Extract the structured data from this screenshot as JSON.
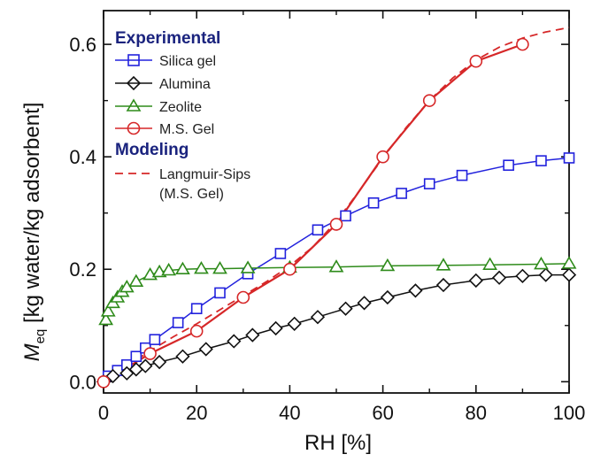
{
  "chart_data": {
    "type": "scatter",
    "xlabel": "RH [%]",
    "ylabel_symbol": "M",
    "ylabel_subscript": "eq",
    "ylabel_rest": " [kg water/kg adsorbent]",
    "xlim": [
      0,
      100
    ],
    "ylim": [
      -0.02,
      0.66
    ],
    "xticks": [
      0,
      20,
      40,
      60,
      80,
      100
    ],
    "xtick_labels": [
      "0",
      "20",
      "40",
      "60",
      "80",
      "100"
    ],
    "yticks": [
      0.0,
      0.2,
      0.4,
      0.6
    ],
    "ytick_labels": [
      "0.0",
      "0.2",
      "0.4",
      "0.6"
    ],
    "grid": false,
    "legend_placement": "top-left",
    "legend_header_experimental": "Experimental",
    "legend_header_modeling": "Modeling",
    "series": [
      {
        "name": "Silica gel",
        "marker": "square",
        "color": "#2222dd",
        "x": [
          1,
          3,
          5,
          7,
          9,
          11,
          16,
          20,
          25,
          31,
          38,
          46,
          52,
          58,
          64,
          70,
          77,
          87,
          94,
          100
        ],
        "y": [
          0.01,
          0.02,
          0.03,
          0.045,
          0.06,
          0.075,
          0.105,
          0.13,
          0.158,
          0.192,
          0.228,
          0.27,
          0.295,
          0.318,
          0.335,
          0.352,
          0.367,
          0.385,
          0.393,
          0.398
        ]
      },
      {
        "name": "Alumina",
        "marker": "diamond",
        "color": "#111111",
        "x": [
          0,
          2,
          5,
          7,
          9,
          12,
          17,
          22,
          28,
          32,
          37,
          41,
          46,
          52,
          56,
          61,
          67,
          73,
          80,
          85,
          90,
          95,
          100
        ],
        "y": [
          0.0,
          0.01,
          0.015,
          0.022,
          0.028,
          0.035,
          0.045,
          0.058,
          0.072,
          0.083,
          0.095,
          0.103,
          0.115,
          0.13,
          0.14,
          0.15,
          0.162,
          0.172,
          0.18,
          0.185,
          0.188,
          0.19,
          0.19
        ]
      },
      {
        "name": "Zeolite",
        "marker": "triangle",
        "color": "#2e8b1a",
        "x": [
          0.5,
          1,
          2,
          3,
          4,
          5,
          7,
          10,
          12,
          14,
          17,
          21,
          25,
          31,
          40,
          50,
          61,
          73,
          83,
          94,
          100
        ],
        "y": [
          0.11,
          0.125,
          0.14,
          0.15,
          0.16,
          0.168,
          0.178,
          0.19,
          0.195,
          0.198,
          0.2,
          0.201,
          0.201,
          0.202,
          0.203,
          0.204,
          0.206,
          0.207,
          0.208,
          0.209,
          0.21
        ]
      },
      {
        "name": "M.S. Gel",
        "marker": "circle",
        "color": "#d62728",
        "x": [
          0,
          10,
          20,
          30,
          40,
          50,
          60,
          70,
          80,
          90
        ],
        "y": [
          0.0,
          0.05,
          0.09,
          0.15,
          0.2,
          0.28,
          0.4,
          0.5,
          0.57,
          0.6
        ]
      }
    ],
    "model": {
      "name": "Langmuir-Sips",
      "name_line2": "(M.S. Gel)",
      "style": "dashed",
      "color": "#d62728",
      "x": [
        0,
        5,
        10,
        15,
        20,
        25,
        30,
        35,
        40,
        45,
        50,
        55,
        60,
        65,
        70,
        75,
        80,
        85,
        90,
        95,
        100
      ],
      "y": [
        0.0,
        0.028,
        0.055,
        0.08,
        0.103,
        0.128,
        0.153,
        0.178,
        0.206,
        0.24,
        0.285,
        0.34,
        0.398,
        0.452,
        0.5,
        0.54,
        0.572,
        0.595,
        0.611,
        0.622,
        0.63
      ]
    }
  }
}
